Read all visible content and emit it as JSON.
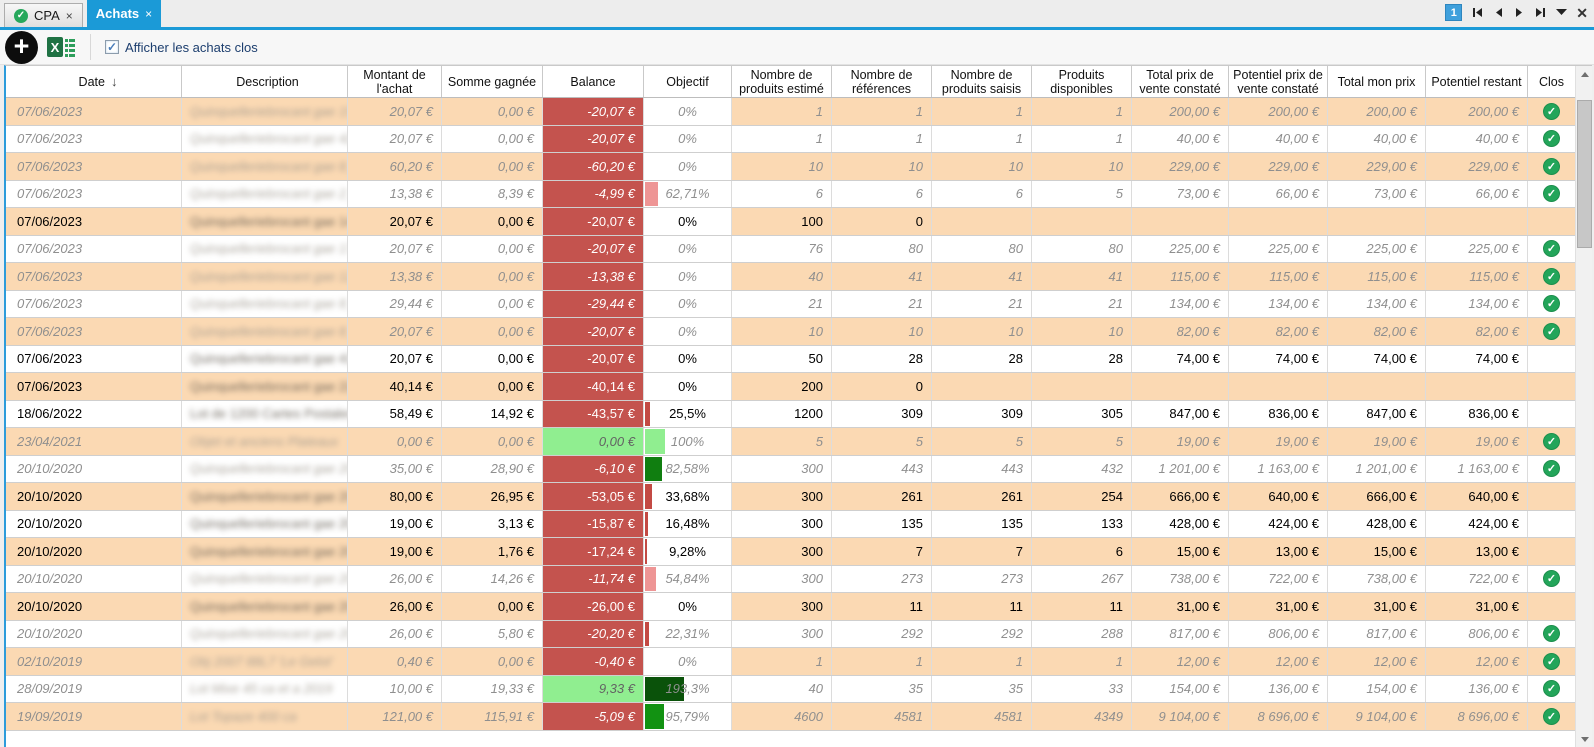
{
  "tabs": [
    {
      "label": "CPA",
      "close_icon": "×",
      "active": false
    },
    {
      "label": "Achats",
      "close_icon": "×",
      "active": true
    }
  ],
  "tabnav": {
    "page_badge": "1",
    "close_icon": "✕"
  },
  "icons": {
    "add": "+",
    "checkbox_check": "✓",
    "clos_check": "✓",
    "cpa_check": "✓",
    "sort_desc": "↓"
  },
  "toolbar": {
    "checkbox_label": "Afficher les achats clos",
    "checkbox_checked": true
  },
  "colors": {
    "accent_blue": "#1B9AD7",
    "row_orange": "#FBD9B3",
    "balance_negative": "#C4534E",
    "balance_positive": "#90EE90",
    "clos_green": "#23A55A",
    "bar_red": "#C34A44",
    "bar_salmon": "#EE9595",
    "bar_green_dark": "#107E10",
    "bar_green_light": "#90EE90"
  },
  "table": {
    "columns": [
      {
        "label": "Date"
      },
      {
        "label": "Description"
      },
      {
        "label": "Montant de l'achat"
      },
      {
        "label": "Somme gagnée"
      },
      {
        "label": "Balance"
      },
      {
        "label": "Objectif"
      },
      {
        "label": "Nombre de produits estimé"
      },
      {
        "label": "Nombre de références"
      },
      {
        "label": "Nombre de produits saisis"
      },
      {
        "label": "Produits disponibles"
      },
      {
        "label": "Total prix de vente constaté"
      },
      {
        "label": "Potentiel prix de vente constaté"
      },
      {
        "label": "Total mon prix"
      },
      {
        "label": "Potentiel restant"
      },
      {
        "label": "Clos"
      }
    ],
    "rows": [
      {
        "date": "07/06/2023",
        "description": "Quinquelleriebrocant gae 15_2019 92_B",
        "montant": "20,07 €",
        "somme": "0,00 €",
        "balance": "-20,07 €",
        "balance_neg": true,
        "objectif_label": "0%",
        "objectif_pct": 0,
        "bar_color": null,
        "nb_estime": "1",
        "nb_references": "1",
        "nb_saisis": "1",
        "nb_disponibles": "1",
        "total_vente": "200,00 €",
        "potentiel_vente": "200,00 €",
        "total_mon_prix": "200,00 €",
        "potentiel_restant": "200,00 €",
        "clos": true,
        "closed": true,
        "shade": "orange"
      },
      {
        "date": "07/06/2023",
        "description": "Quinquelleriebrocant gae 42_2019 97_G",
        "montant": "20,07 €",
        "somme": "0,00 €",
        "balance": "-20,07 €",
        "balance_neg": true,
        "objectif_label": "0%",
        "objectif_pct": 0,
        "bar_color": null,
        "nb_estime": "1",
        "nb_references": "1",
        "nb_saisis": "1",
        "nb_disponibles": "1",
        "total_vente": "40,00 €",
        "potentiel_vente": "40,00 €",
        "total_mon_prix": "40,00 €",
        "potentiel_restant": "40,00 €",
        "clos": true,
        "closed": true,
        "shade": "white"
      },
      {
        "date": "07/06/2023",
        "description": "Quinquelleriebrocant gae 8_2019 59_deq",
        "montant": "60,20 €",
        "somme": "0,00 €",
        "balance": "-60,20 €",
        "balance_neg": true,
        "objectif_label": "0%",
        "objectif_pct": 0,
        "bar_color": null,
        "nb_estime": "10",
        "nb_references": "10",
        "nb_saisis": "10",
        "nb_disponibles": "10",
        "total_vente": "229,00 €",
        "potentiel_vente": "229,00 €",
        "total_mon_prix": "229,00 €",
        "potentiel_restant": "229,00 €",
        "clos": true,
        "closed": true,
        "shade": "orange"
      },
      {
        "date": "07/06/2023",
        "description": "Quinquelleriebrocant gae 2_2019 97_LG",
        "montant": "13,38 €",
        "somme": "8,39 €",
        "balance": "-4,99 €",
        "balance_neg": true,
        "objectif_label": "62,71%",
        "objectif_pct": 62.71,
        "bar_color": "#EE9595",
        "nb_estime": "6",
        "nb_references": "6",
        "nb_saisis": "6",
        "nb_disponibles": "5",
        "total_vente": "73,00 €",
        "potentiel_vente": "66,00 €",
        "total_mon_prix": "73,00 €",
        "potentiel_restant": "66,00 €",
        "clos": true,
        "closed": true,
        "shade": "white"
      },
      {
        "date": "07/06/2023",
        "description": "Quinquelleriebrocant gae 14_2019 98...",
        "montant": "20,07 €",
        "somme": "0,00 €",
        "balance": "-20,07 €",
        "balance_neg": true,
        "objectif_label": "0%",
        "objectif_pct": 0,
        "bar_color": null,
        "nb_estime": "100",
        "nb_references": "0",
        "nb_saisis": "",
        "nb_disponibles": "",
        "total_vente": "",
        "potentiel_vente": "",
        "total_mon_prix": "",
        "potentiel_restant": "",
        "clos": false,
        "closed": false,
        "shade": "orange"
      },
      {
        "date": "07/06/2023",
        "description": "Quinquelleriebrocant gae 17_2019 68_76",
        "montant": "20,07 €",
        "somme": "0,00 €",
        "balance": "-20,07 €",
        "balance_neg": true,
        "objectif_label": "0%",
        "objectif_pct": 0,
        "bar_color": null,
        "nb_estime": "76",
        "nb_references": "80",
        "nb_saisis": "80",
        "nb_disponibles": "80",
        "total_vente": "225,00 €",
        "potentiel_vente": "225,00 €",
        "total_mon_prix": "225,00 €",
        "potentiel_restant": "225,00 €",
        "clos": true,
        "closed": true,
        "shade": "white"
      },
      {
        "date": "07/06/2023",
        "description": "Quinquelleriebrocant gae 12_2019 88_7G",
        "montant": "13,38 €",
        "somme": "0,00 €",
        "balance": "-13,38 €",
        "balance_neg": true,
        "objectif_label": "0%",
        "objectif_pct": 0,
        "bar_color": null,
        "nb_estime": "40",
        "nb_references": "41",
        "nb_saisis": "41",
        "nb_disponibles": "41",
        "total_vente": "115,00 €",
        "potentiel_vente": "115,00 €",
        "total_mon_prix": "115,00 €",
        "potentiel_restant": "115,00 €",
        "clos": true,
        "closed": true,
        "shade": "orange"
      },
      {
        "date": "07/06/2023",
        "description": "Quinquelleriebrocant gae 8_2019 148_3",
        "montant": "29,44 €",
        "somme": "0,00 €",
        "balance": "-29,44 €",
        "balance_neg": true,
        "objectif_label": "0%",
        "objectif_pct": 0,
        "bar_color": null,
        "nb_estime": "21",
        "nb_references": "21",
        "nb_saisis": "21",
        "nb_disponibles": "21",
        "total_vente": "134,00 €",
        "potentiel_vente": "134,00 €",
        "total_mon_prix": "134,00 €",
        "potentiel_restant": "134,00 €",
        "clos": true,
        "closed": true,
        "shade": "white"
      },
      {
        "date": "07/06/2023",
        "description": "Quinquelleriebrocant gae 8_2019 52_46",
        "montant": "20,07 €",
        "somme": "0,00 €",
        "balance": "-20,07 €",
        "balance_neg": true,
        "objectif_label": "0%",
        "objectif_pct": 0,
        "bar_color": null,
        "nb_estime": "10",
        "nb_references": "10",
        "nb_saisis": "10",
        "nb_disponibles": "10",
        "total_vente": "82,00 €",
        "potentiel_vente": "82,00 €",
        "total_mon_prix": "82,00 €",
        "potentiel_restant": "82,00 €",
        "clos": true,
        "closed": true,
        "shade": "orange"
      },
      {
        "date": "07/06/2023",
        "description": "Quinquelleriebrocant gae 41_2019 275...",
        "montant": "20,07 €",
        "somme": "0,00 €",
        "balance": "-20,07 €",
        "balance_neg": true,
        "objectif_label": "0%",
        "objectif_pct": 0,
        "bar_color": null,
        "nb_estime": "50",
        "nb_references": "28",
        "nb_saisis": "28",
        "nb_disponibles": "28",
        "total_vente": "74,00 €",
        "potentiel_vente": "74,00 €",
        "total_mon_prix": "74,00 €",
        "potentiel_restant": "74,00 €",
        "clos": false,
        "closed": false,
        "shade": "white"
      },
      {
        "date": "07/06/2023",
        "description": "Quinquelleriebrocant gae 22_2019 888...",
        "montant": "40,14 €",
        "somme": "0,00 €",
        "balance": "-40,14 €",
        "balance_neg": true,
        "objectif_label": "0%",
        "objectif_pct": 0,
        "bar_color": null,
        "nb_estime": "200",
        "nb_references": "0",
        "nb_saisis": "",
        "nb_disponibles": "",
        "total_vente": "",
        "potentiel_vente": "",
        "total_mon_prix": "",
        "potentiel_restant": "",
        "clos": false,
        "closed": false,
        "shade": "orange"
      },
      {
        "date": "18/06/2022",
        "description": "Lot de 1200 Cartes Postales anciennes",
        "montant": "58,49 €",
        "somme": "14,92 €",
        "balance": "-43,57 €",
        "balance_neg": true,
        "objectif_label": "25,5%",
        "objectif_pct": 25.5,
        "bar_color": "#C34A44",
        "nb_estime": "1200",
        "nb_references": "309",
        "nb_saisis": "309",
        "nb_disponibles": "305",
        "total_vente": "847,00 €",
        "potentiel_vente": "836,00 €",
        "total_mon_prix": "847,00 €",
        "potentiel_restant": "836,00 €",
        "clos": false,
        "closed": false,
        "shade": "white"
      },
      {
        "date": "23/04/2021",
        "description": "Objet et anciens Plateaux",
        "montant": "0,00 €",
        "somme": "0,00 €",
        "balance": "0,00 €",
        "balance_neg": false,
        "objectif_label": "100%",
        "objectif_pct": 100,
        "bar_color": "#90EE90",
        "nb_estime": "5",
        "nb_references": "5",
        "nb_saisis": "5",
        "nb_disponibles": "5",
        "total_vente": "19,00 €",
        "potentiel_vente": "19,00 €",
        "total_mon_prix": "19,00 €",
        "potentiel_restant": "19,00 €",
        "clos": true,
        "closed": true,
        "shade": "orange"
      },
      {
        "date": "20/10/2020",
        "description": "Quinquelleriebrocant gae 2009 11 Lot de c",
        "montant": "35,00 €",
        "somme": "28,90 €",
        "balance": "-6,10 €",
        "balance_neg": true,
        "objectif_label": "82,58%",
        "objectif_pct": 82.58,
        "bar_color": "#107E10",
        "nb_estime": "300",
        "nb_references": "443",
        "nb_saisis": "443",
        "nb_disponibles": "432",
        "total_vente": "1 201,00 €",
        "potentiel_vente": "1 163,00 €",
        "total_mon_prix": "1 201,00 €",
        "potentiel_restant": "1 163,00 €",
        "clos": true,
        "closed": true,
        "shade": "white"
      },
      {
        "date": "20/10/2020",
        "description": "Quinquelleriebrocant gae 20091 13 88L",
        "montant": "80,00 €",
        "somme": "26,95 €",
        "balance": "-53,05 €",
        "balance_neg": true,
        "objectif_label": "33,68%",
        "objectif_pct": 33.68,
        "bar_color": "#C34A44",
        "nb_estime": "300",
        "nb_references": "261",
        "nb_saisis": "261",
        "nb_disponibles": "254",
        "total_vente": "666,00 €",
        "potentiel_vente": "640,00 €",
        "total_mon_prix": "666,00 €",
        "potentiel_restant": "640,00 €",
        "clos": false,
        "closed": false,
        "shade": "orange"
      },
      {
        "date": "20/10/2020",
        "description": "Quinquelleriebrocant gae 20096 12 Lot",
        "montant": "19,00 €",
        "somme": "3,13 €",
        "balance": "-15,87 €",
        "balance_neg": true,
        "objectif_label": "16,48%",
        "objectif_pct": 16.48,
        "bar_color": "#C34A44",
        "nb_estime": "300",
        "nb_references": "135",
        "nb_saisis": "135",
        "nb_disponibles": "133",
        "total_vente": "428,00 €",
        "potentiel_vente": "424,00 €",
        "total_mon_prix": "428,00 €",
        "potentiel_restant": "424,00 €",
        "clos": false,
        "closed": false,
        "shade": "white"
      },
      {
        "date": "20/10/2020",
        "description": "Quinquelleriebrocant gae 20096 17 Lot",
        "montant": "19,00 €",
        "somme": "1,76 €",
        "balance": "-17,24 €",
        "balance_neg": true,
        "objectif_label": "9,28%",
        "objectif_pct": 9.28,
        "bar_color": "#C34A44",
        "nb_estime": "300",
        "nb_references": "7",
        "nb_saisis": "7",
        "nb_disponibles": "6",
        "total_vente": "15,00 €",
        "potentiel_vente": "13,00 €",
        "total_mon_prix": "15,00 €",
        "potentiel_restant": "13,00 €",
        "clos": false,
        "closed": false,
        "shade": "orange"
      },
      {
        "date": "20/10/2020",
        "description": "Quinquelleriebrocant gae 20096 18 Lot de c",
        "montant": "26,00 €",
        "somme": "14,26 €",
        "balance": "-11,74 €",
        "balance_neg": true,
        "objectif_label": "54,84%",
        "objectif_pct": 54.84,
        "bar_color": "#EE9595",
        "nb_estime": "300",
        "nb_references": "273",
        "nb_saisis": "273",
        "nb_disponibles": "267",
        "total_vente": "738,00 €",
        "potentiel_vente": "722,00 €",
        "total_mon_prix": "738,00 €",
        "potentiel_restant": "722,00 €",
        "clos": true,
        "closed": true,
        "shade": "white"
      },
      {
        "date": "20/10/2020",
        "description": "Quinquelleriebrocant gae 20096 19 Lot",
        "montant": "26,00 €",
        "somme": "0,00 €",
        "balance": "-26,00 €",
        "balance_neg": true,
        "objectif_label": "0%",
        "objectif_pct": 0,
        "bar_color": null,
        "nb_estime": "300",
        "nb_references": "11",
        "nb_saisis": "11",
        "nb_disponibles": "11",
        "total_vente": "31,00 €",
        "potentiel_vente": "31,00 €",
        "total_mon_prix": "31,00 €",
        "potentiel_restant": "31,00 €",
        "clos": false,
        "closed": false,
        "shade": "orange"
      },
      {
        "date": "20/10/2020",
        "description": "Quinquelleriebrocant gae 20096 87 Lot de c",
        "montant": "26,00 €",
        "somme": "5,80 €",
        "balance": "-20,20 €",
        "balance_neg": true,
        "objectif_label": "22,31%",
        "objectif_pct": 22.31,
        "bar_color": "#C34A44",
        "nb_estime": "300",
        "nb_references": "292",
        "nb_saisis": "292",
        "nb_disponibles": "288",
        "total_vente": "817,00 €",
        "potentiel_vente": "806,00 €",
        "total_mon_prix": "817,00 €",
        "potentiel_restant": "806,00 €",
        "clos": true,
        "closed": true,
        "shade": "white"
      },
      {
        "date": "02/10/2019",
        "description": "Obj 2007 88L7 'Le Gelot'",
        "montant": "0,40 €",
        "somme": "0,00 €",
        "balance": "-0,40 €",
        "balance_neg": true,
        "objectif_label": "0%",
        "objectif_pct": 0,
        "bar_color": null,
        "nb_estime": "1",
        "nb_references": "1",
        "nb_saisis": "1",
        "nb_disponibles": "1",
        "total_vente": "12,00 €",
        "potentiel_vente": "12,00 €",
        "total_mon_prix": "12,00 €",
        "potentiel_restant": "12,00 €",
        "clos": true,
        "closed": true,
        "shade": "orange"
      },
      {
        "date": "28/09/2019",
        "description": "Lot Mixe 45 ca et a 2019",
        "montant": "10,00 €",
        "somme": "19,33 €",
        "balance": "9,33 €",
        "balance_neg": false,
        "objectif_label": "193,3%",
        "objectif_pct": 193.3,
        "bar_color": "#0A520A",
        "nb_estime": "40",
        "nb_references": "35",
        "nb_saisis": "35",
        "nb_disponibles": "33",
        "total_vente": "154,00 €",
        "potentiel_vente": "136,00 €",
        "total_mon_prix": "154,00 €",
        "potentiel_restant": "136,00 €",
        "clos": true,
        "closed": true,
        "shade": "white"
      },
      {
        "date": "19/09/2019",
        "description": "Lot Topaze 400 ca",
        "montant": "121,00 €",
        "somme": "115,91 €",
        "balance": "-5,09 €",
        "balance_neg": true,
        "objectif_label": "95,79%",
        "objectif_pct": 95.79,
        "bar_color": "#129212",
        "nb_estime": "4600",
        "nb_references": "4581",
        "nb_saisis": "4581",
        "nb_disponibles": "4349",
        "total_vente": "9 104,00 €",
        "potentiel_vente": "8 696,00 €",
        "total_mon_prix": "9 104,00 €",
        "potentiel_restant": "8 696,00 €",
        "clos": true,
        "closed": true,
        "shade": "orange"
      }
    ]
  }
}
